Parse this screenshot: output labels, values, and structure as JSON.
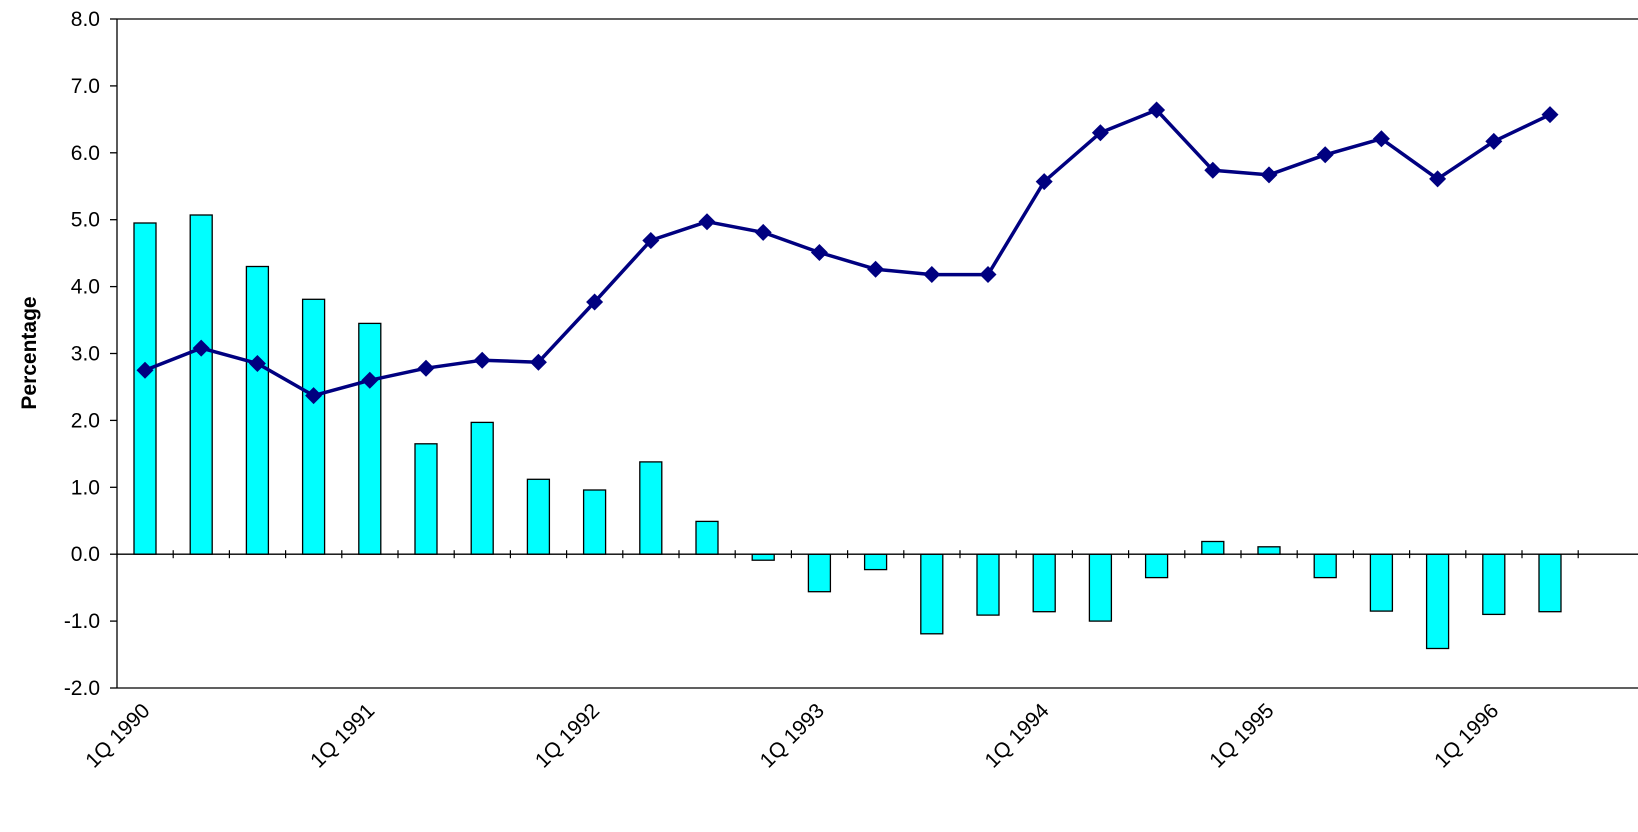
{
  "chart_data": {
    "type": "bar+line",
    "title": "",
    "xlabel": "",
    "ylabel": "Percentage",
    "ylim": [
      -2.0,
      8.0
    ],
    "yticks": [
      "8.0",
      "7.0",
      "6.0",
      "5.0",
      "4.0",
      "3.0",
      "2.0",
      "1.0",
      "0.0",
      "-1.0",
      "-2.0"
    ],
    "xtick_labels": [
      "1Q 1990",
      "1Q 1991",
      "1Q 1992",
      "1Q 1993",
      "1Q 1994",
      "1Q 1995",
      "1Q 1996"
    ],
    "x": [
      "1Q 1990",
      "2Q 1990",
      "3Q 1990",
      "4Q 1990",
      "1Q 1991",
      "2Q 1991",
      "3Q 1991",
      "4Q 1991",
      "1Q 1992",
      "2Q 1992",
      "3Q 1992",
      "4Q 1992",
      "1Q 1993",
      "2Q 1993",
      "3Q 1993",
      "4Q 1993",
      "1Q 1994",
      "2Q 1994",
      "3Q 1994",
      "4Q 1994",
      "1Q 1995",
      "2Q 1995",
      "3Q 1995",
      "4Q 1995",
      "1Q 1996",
      "2Q 1996"
    ],
    "series": [
      {
        "kind": "bar",
        "color": "#00ffff",
        "values": [
          4.95,
          5.07,
          4.3,
          3.81,
          3.45,
          1.65,
          1.97,
          1.12,
          0.96,
          1.38,
          0.49,
          -0.09,
          -0.56,
          -0.23,
          -1.19,
          -0.91,
          -0.86,
          -1.0,
          -0.35,
          0.19,
          0.11,
          -0.35,
          -0.85,
          -1.41,
          -0.9,
          -0.86
        ]
      },
      {
        "kind": "line",
        "color": "#000080",
        "marker": "diamond",
        "values": [
          2.75,
          3.08,
          2.85,
          2.37,
          2.6,
          2.78,
          2.9,
          2.87,
          3.77,
          4.69,
          4.97,
          4.81,
          4.51,
          4.26,
          4.18,
          4.18,
          5.57,
          6.3,
          6.64,
          5.74,
          5.67,
          5.97,
          6.21,
          5.61,
          6.17,
          6.57
        ]
      }
    ],
    "grid": false,
    "legend": "none"
  }
}
